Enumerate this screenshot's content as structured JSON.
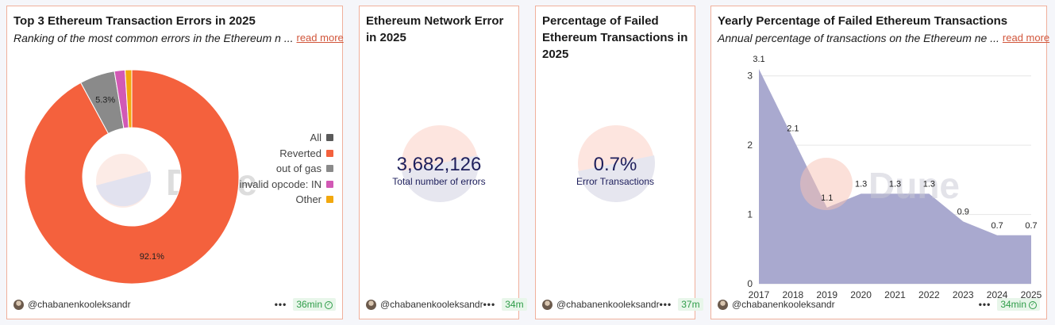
{
  "cards": {
    "errors_pie": {
      "title": "Top 3 Ethereum Transaction Errors in 2025",
      "subtitle": "Ranking of the most common errors in the Ethereum n ...",
      "read_more": "read more",
      "author": "@chabanenkooleksandr",
      "dots": "•••",
      "age": "36min"
    },
    "network_error": {
      "title": "Ethereum Network Error in 2025",
      "author": "@chabanenkooleksandr",
      "dots": "•••",
      "age": "34m",
      "counter_value": "3,682,126",
      "counter_label": "Total number of errors"
    },
    "failed_pct": {
      "title": "Percentage of Failed Ethereum Transactions in 2025",
      "author": "@chabanenkooleksandr",
      "dots": "•••",
      "age": "37m",
      "counter_value": "0.7%",
      "counter_label": "Error Transactions"
    },
    "yearly": {
      "title": "Yearly Percentage of Failed Ethereum Transactions",
      "subtitle": "Annual percentage of transactions on the Ethereum ne ...",
      "read_more": "read more",
      "author": "@chabanenkooleksandr",
      "dots": "•••",
      "age": "34min"
    }
  },
  "watermark": "Dune",
  "colors": {
    "accent": "#f0b09c",
    "area": "#a9a9cf",
    "reverted": "#f4613d",
    "out_of_gas": "#8a8a8a",
    "invalid_opcode": "#d259b5",
    "other": "#f2a80d",
    "all": "#5a5a5a",
    "counter_text": "#1e1f5c",
    "age_green": "#2e9c48"
  },
  "chart_data": [
    {
      "type": "pie",
      "legend_placement": "right",
      "legend": [
        {
          "name": "All",
          "color": "#5a5a5a"
        },
        {
          "name": "Reverted",
          "color": "#f4613d"
        },
        {
          "name": "out of gas",
          "color": "#8a8a8a"
        },
        {
          "name": "invalid opcode: IN",
          "color": "#d259b5"
        },
        {
          "name": "Other",
          "color": "#f2a80d"
        }
      ],
      "slices": [
        {
          "name": "Reverted",
          "value": 92.1,
          "label": "92.1%",
          "color": "#f4613d"
        },
        {
          "name": "out of gas",
          "value": 5.3,
          "label": "5.3%",
          "color": "#8a8a8a"
        },
        {
          "name": "invalid opcode: IN",
          "value": 1.6,
          "label": "",
          "color": "#d259b5"
        },
        {
          "name": "Other",
          "value": 1.0,
          "label": "",
          "color": "#f2a80d"
        }
      ]
    },
    {
      "type": "area",
      "x": [
        "2017",
        "2018",
        "2019",
        "2020",
        "2021",
        "2022",
        "2023",
        "2024",
        "2025"
      ],
      "values": [
        3.1,
        2.1,
        1.1,
        1.3,
        1.3,
        1.3,
        0.9,
        0.7,
        0.7
      ],
      "data_labels": [
        "3.1",
        "2.1",
        "1.1",
        "1.3",
        "1.3",
        "1.3",
        "0.9",
        "0.7",
        "0.7"
      ],
      "ylim": [
        0,
        3.1
      ],
      "yticks": [
        "0",
        "1",
        "2",
        "3"
      ],
      "grid": true,
      "color": "#a9a9cf"
    }
  ]
}
